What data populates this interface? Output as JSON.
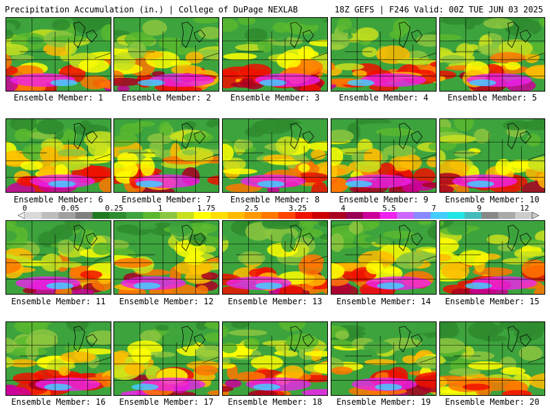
{
  "header": {
    "left_title": "Precipitation Accumulation (in.) | College of DuPage NEXLAB",
    "right_title": "18Z GEFS | F246 Valid: 00Z TUE JUN 03 2025"
  },
  "panels": [
    {
      "caption": "Ensemble Member: 1"
    },
    {
      "caption": "Ensemble Member: 2"
    },
    {
      "caption": "Ensemble Member: 3"
    },
    {
      "caption": "Ensemble Member: 4"
    },
    {
      "caption": "Ensemble Member: 5"
    },
    {
      "caption": "Ensemble Member: 6"
    },
    {
      "caption": "Ensemble Member: 7"
    },
    {
      "caption": "Ensemble Member: 8"
    },
    {
      "caption": "Ensemble Member: 9"
    },
    {
      "caption": "Ensemble Member: 10"
    },
    {
      "caption": "Ensemble Member: 11"
    },
    {
      "caption": "Ensemble Member: 12"
    },
    {
      "caption": "Ensemble Member: 13"
    },
    {
      "caption": "Ensemble Member: 14"
    },
    {
      "caption": "Ensemble Member: 15"
    },
    {
      "caption": "Ensemble Member: 16"
    },
    {
      "caption": "Ensemble Member: 17"
    },
    {
      "caption": "Ensemble Member: 18"
    },
    {
      "caption": "Ensemble Member: 19"
    },
    {
      "caption": "Ensemble Member: 20"
    }
  ],
  "colorbar": {
    "labels": [
      "0",
      "0.05",
      "0.25",
      "1",
      "1.75",
      "2.5",
      "3.25",
      "4",
      "5.5",
      "7",
      "9",
      "12"
    ],
    "colors": [
      "#d9d9d9",
      "#bdbdbd",
      "#a0a0a0",
      "#7f7f7f",
      "#1f7a1f",
      "#2e8b2e",
      "#3da33d",
      "#59b82e",
      "#8cc63f",
      "#c8e01e",
      "#ffff00",
      "#ffdd00",
      "#ffbb00",
      "#ff9900",
      "#ff7700",
      "#ff4400",
      "#ee1100",
      "#cc0000",
      "#aa0022",
      "#990055",
      "#cc0099",
      "#ee22ee",
      "#cc66ff",
      "#8888ff",
      "#44ccff",
      "#22e5e5",
      "#44bbbb",
      "#888888",
      "#aaaaaa",
      "#cccccc"
    ]
  }
}
